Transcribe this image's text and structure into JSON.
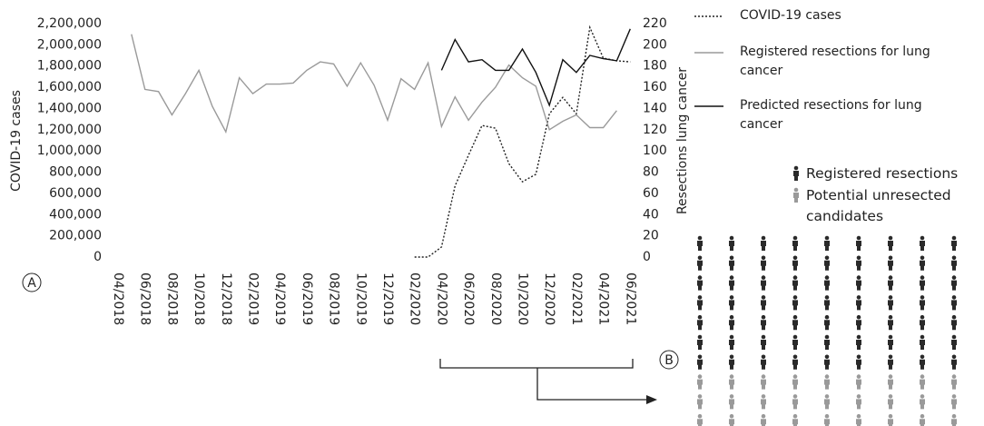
{
  "chart_data": {
    "type": "line",
    "categories": [
      "04/2018",
      null,
      "06/2018",
      null,
      "08/2018",
      null,
      "10/2018",
      null,
      "12/2018",
      null,
      "02/2019",
      null,
      "04/2019",
      null,
      "06/2019",
      null,
      "08/2019",
      null,
      "10/2019",
      null,
      "12/2019",
      null,
      "02/2020",
      null,
      "04/2020",
      null,
      "06/2020",
      null,
      "08/2020",
      null,
      "10/2020",
      null,
      "12/2020",
      null,
      "02/2021",
      null,
      "04/2021",
      null,
      "06/2021"
    ],
    "series": [
      {
        "name": "COVID-19 cases",
        "color": "#222222",
        "dash": "dotted",
        "axis": "y",
        "values": [
          null,
          null,
          null,
          null,
          null,
          null,
          null,
          null,
          null,
          null,
          null,
          null,
          null,
          null,
          null,
          null,
          null,
          null,
          null,
          null,
          null,
          null,
          0,
          0,
          95000,
          670000,
          960000,
          1240000,
          1215000,
          880000,
          710000,
          780000,
          1350000,
          1505000,
          1350000,
          2165000,
          1875000,
          1850000,
          1840000
        ]
      },
      {
        "name": "Registered resections for lung cancer",
        "color": "#9a9a9a",
        "dash": "solid",
        "axis": "y2",
        "values": [
          null,
          210,
          158,
          156,
          134,
          154,
          176,
          142,
          118,
          169,
          154,
          163,
          163,
          164,
          176,
          184,
          182,
          161,
          183,
          162,
          129,
          168,
          158,
          183,
          123,
          151,
          129,
          146,
          160,
          181,
          169,
          161,
          120,
          128,
          134,
          122,
          122,
          138,
          null
        ]
      },
      {
        "name": "Predicted resections for lung cancer",
        "color": "#111111",
        "dash": "solid",
        "axis": "y2",
        "values": [
          null,
          null,
          null,
          null,
          null,
          null,
          null,
          null,
          null,
          null,
          null,
          null,
          null,
          null,
          null,
          null,
          null,
          null,
          null,
          null,
          null,
          null,
          null,
          null,
          176,
          205,
          184,
          186,
          176,
          176,
          196,
          174,
          143,
          186,
          174,
          190,
          187,
          185,
          215
        ]
      }
    ],
    "ylabel": "COVID-19 cases",
    "y2label": "Resections lung cancer",
    "ylim": [
      0,
      2200000
    ],
    "yticks": [
      0,
      {
        "value": 200000,
        "label": "200,000"
      },
      {
        "value": 400000,
        "label": "400,000"
      },
      {
        "value": 600000,
        "label": "600,000"
      },
      {
        "value": 800000,
        "label": "800,000"
      },
      {
        "value": 1000000,
        "label": "1,000,000"
      },
      {
        "value": 1200000,
        "label": "1,200,000"
      },
      {
        "value": 1400000,
        "label": "1,400,000"
      },
      {
        "value": 1600000,
        "label": "1,600,000"
      },
      {
        "value": 1800000,
        "label": "1,800,000"
      },
      {
        "value": 2000000,
        "label": "2,000,000"
      },
      {
        "value": 2200000,
        "label": "2,200,000"
      }
    ],
    "y2lim": [
      0,
      220
    ],
    "y2ticks": [
      0,
      20,
      40,
      60,
      80,
      100,
      120,
      140,
      160,
      180,
      200,
      220
    ],
    "grid": false,
    "legend": "upper right"
  },
  "panels": {
    "chart_label": "A",
    "pictogram_label": "B"
  },
  "pictogram": {
    "legend": [
      {
        "label": "Registered resections",
        "color": "#2a2a2a"
      },
      {
        "label": "Potential unresected candidates",
        "color": "#9a9a9a"
      }
    ]
  }
}
